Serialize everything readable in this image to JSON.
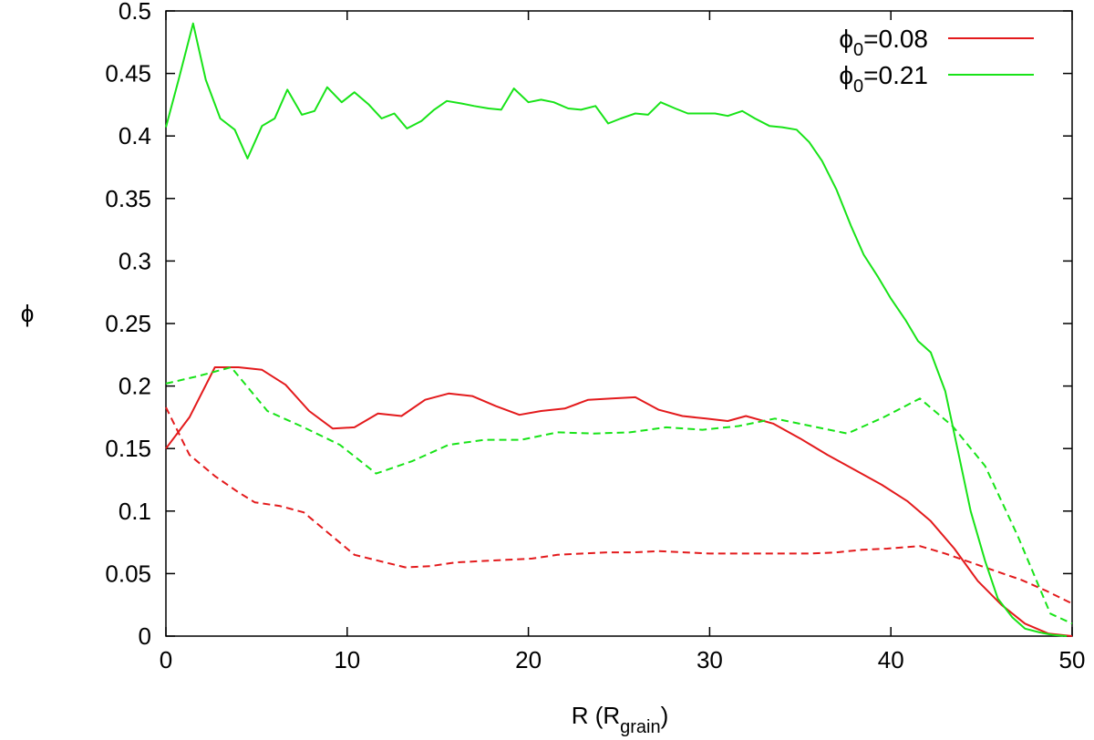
{
  "chart_data": {
    "type": "line",
    "xlim": [
      0,
      50
    ],
    "ylim": [
      0,
      0.5
    ],
    "xticks": [
      "0",
      "10",
      "20",
      "30",
      "40",
      "50"
    ],
    "yticks": [
      "0",
      "0.05",
      "0.1",
      "0.15",
      "0.2",
      "0.25",
      "0.3",
      "0.35",
      "0.4",
      "0.45",
      "0.5"
    ],
    "xlabel": {
      "main": "R (R",
      "sub": "grain",
      "close": ")"
    },
    "ylabel": "ϕ",
    "grid": false,
    "legend": {
      "placement": "top-right",
      "entries": [
        {
          "symbol": "ϕ",
          "sub": "0",
          "text": "=0.08",
          "color": "#e31a1c"
        },
        {
          "symbol": "ϕ",
          "sub": "0",
          "text": "=0.21",
          "color": "#18e318"
        }
      ]
    },
    "series": [
      {
        "legend_index": 0,
        "color": "#e31a1c",
        "dash": "solid",
        "x": [
          0,
          1.3,
          2.7,
          4,
          5.3,
          6.6,
          7.9,
          9.2,
          10.4,
          11.7,
          13,
          14.3,
          15.6,
          16.9,
          18.2,
          19.5,
          20.7,
          22,
          23.3,
          24.6,
          25.9,
          27.2,
          28.5,
          29.8,
          31,
          32,
          33.5,
          35,
          36.5,
          38,
          39.5,
          40.9,
          42.2,
          43.5,
          44.8,
          46.1,
          47.4,
          48.7,
          50
        ],
        "y": [
          0.15,
          0.175,
          0.215,
          0.215,
          0.213,
          0.201,
          0.18,
          0.166,
          0.167,
          0.178,
          0.176,
          0.189,
          0.194,
          0.192,
          0.184,
          0.177,
          0.18,
          0.182,
          0.189,
          0.19,
          0.191,
          0.181,
          0.176,
          0.174,
          0.172,
          0.176,
          0.17,
          0.158,
          0.145,
          0.133,
          0.121,
          0.108,
          0.092,
          0.07,
          0.044,
          0.025,
          0.01,
          0.002,
          0.0
        ]
      },
      {
        "legend_index": null,
        "color": "#e31a1c",
        "dash": "dashed",
        "x": [
          0,
          1.3,
          2.7,
          4,
          4.9,
          6.3,
          7.6,
          9,
          10.4,
          11.8,
          13.2,
          14.6,
          16,
          17.4,
          18.8,
          20.2,
          21.6,
          23,
          24.4,
          25.8,
          27.2,
          28.6,
          30,
          31.4,
          32.8,
          34.2,
          35.6,
          37,
          38.4,
          39.8,
          41.6,
          43,
          44.4,
          45.8,
          47.2,
          48.6,
          50
        ],
        "y": [
          0.183,
          0.145,
          0.128,
          0.115,
          0.107,
          0.104,
          0.099,
          0.082,
          0.065,
          0.06,
          0.055,
          0.056,
          0.059,
          0.06,
          0.061,
          0.062,
          0.065,
          0.066,
          0.067,
          0.067,
          0.068,
          0.067,
          0.066,
          0.066,
          0.066,
          0.066,
          0.066,
          0.067,
          0.069,
          0.07,
          0.072,
          0.066,
          0.059,
          0.052,
          0.045,
          0.036,
          0.026
        ]
      },
      {
        "legend_index": 1,
        "color": "#18e318",
        "dash": "solid",
        "x": [
          0,
          0.7,
          1.5,
          2.2,
          3,
          3.8,
          4.5,
          5.3,
          6,
          6.7,
          7.5,
          8.2,
          8.9,
          9.7,
          10.4,
          11.2,
          11.9,
          12.6,
          13.3,
          14.1,
          14.8,
          15.5,
          16.3,
          17,
          17.8,
          18.5,
          19.2,
          20,
          20.7,
          21.4,
          22.2,
          22.9,
          23.7,
          24.4,
          25.1,
          25.9,
          26.6,
          27.3,
          28.1,
          28.8,
          29.5,
          30.3,
          31,
          31.8,
          32.5,
          33.3,
          34,
          34.8,
          35.5,
          36.2,
          37,
          37.8,
          38.5,
          39.3,
          40,
          40.8,
          41.5,
          42.2,
          43,
          43.7,
          44.4,
          45.2,
          45.9,
          46.7,
          47.4,
          48.2,
          48.9,
          49.7
        ],
        "y": [
          0.407,
          0.445,
          0.49,
          0.445,
          0.414,
          0.405,
          0.382,
          0.408,
          0.414,
          0.437,
          0.417,
          0.42,
          0.439,
          0.427,
          0.435,
          0.425,
          0.414,
          0.418,
          0.406,
          0.412,
          0.421,
          0.428,
          0.426,
          0.424,
          0.422,
          0.421,
          0.438,
          0.427,
          0.429,
          0.427,
          0.422,
          0.421,
          0.424,
          0.41,
          0.414,
          0.418,
          0.417,
          0.427,
          0.422,
          0.418,
          0.418,
          0.418,
          0.416,
          0.42,
          0.414,
          0.408,
          0.407,
          0.405,
          0.395,
          0.38,
          0.357,
          0.328,
          0.305,
          0.287,
          0.27,
          0.253,
          0.236,
          0.227,
          0.196,
          0.148,
          0.1,
          0.06,
          0.03,
          0.015,
          0.006,
          0.003,
          0.001,
          0.0
        ]
      },
      {
        "legend_index": null,
        "color": "#18e318",
        "dash": "dashed",
        "x": [
          0,
          1.8,
          3.6,
          5.6,
          7.6,
          9.6,
          11.6,
          13.6,
          15.6,
          17.6,
          19.6,
          21.6,
          23.6,
          25.6,
          27.6,
          29.6,
          31.6,
          33.6,
          35.6,
          37.6,
          39.6,
          41.6,
          43.4,
          45.2,
          47,
          48.8,
          50
        ],
        "y": [
          0.202,
          0.208,
          0.215,
          0.18,
          0.167,
          0.153,
          0.13,
          0.14,
          0.153,
          0.157,
          0.157,
          0.163,
          0.162,
          0.163,
          0.167,
          0.165,
          0.168,
          0.174,
          0.168,
          0.162,
          0.175,
          0.19,
          0.168,
          0.136,
          0.08,
          0.018,
          0.01
        ]
      }
    ]
  }
}
